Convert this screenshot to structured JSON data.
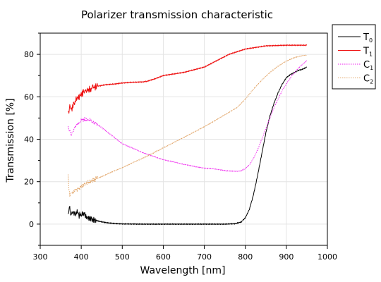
{
  "chart_data": {
    "type": "line",
    "title": "Polarizer transmission characteristic",
    "xlabel": "Wavelength [nm]",
    "ylabel": "Transmission [%]",
    "xlim": [
      300,
      1000
    ],
    "ylim": [
      -10,
      90
    ],
    "xticks": [
      "300",
      "400",
      "500",
      "600",
      "700",
      "800",
      "900",
      "1000"
    ],
    "yticks": [
      "0",
      "20",
      "40",
      "60",
      "80"
    ],
    "grid": true,
    "legend_position": "outside-top-right",
    "series": [
      {
        "name": "T",
        "subscript": "0",
        "color": "#000000",
        "dash": "solid",
        "x": [
          368,
          372,
          376,
          380,
          385,
          390,
          395,
          400,
          410,
          420,
          440,
          460,
          480,
          500,
          550,
          600,
          650,
          700,
          750,
          775,
          790,
          800,
          810,
          820,
          830,
          840,
          850,
          860,
          870,
          880,
          890,
          900,
          910,
          920,
          930,
          940,
          950
        ],
        "y": [
          5,
          7,
          4,
          6,
          5,
          6,
          4,
          5,
          4,
          3,
          1.5,
          0.7,
          0.3,
          0.1,
          0,
          0,
          0,
          0,
          0,
          0.2,
          1,
          3,
          7,
          14,
          23,
          33,
          43,
          51,
          57,
          62,
          66,
          69,
          70.5,
          71.5,
          72.5,
          73,
          74
        ]
      },
      {
        "name": "T",
        "subscript": "1",
        "color": "#ee1111",
        "dash": "solid",
        "x": [
          368,
          370,
          372,
          375,
          380,
          385,
          390,
          400,
          410,
          420,
          440,
          460,
          480,
          500,
          520,
          550,
          560,
          580,
          600,
          650,
          700,
          730,
          760,
          800,
          850,
          900,
          950
        ],
        "y": [
          54,
          52,
          55,
          53,
          56,
          58,
          59,
          61,
          63,
          63.5,
          65,
          65.7,
          66,
          66.5,
          66.8,
          67,
          67.3,
          68.5,
          70,
          71.5,
          74,
          77,
          80,
          82.5,
          84,
          84.3,
          84.3
        ]
      },
      {
        "name": "C",
        "subscript": "1",
        "color": "#ee22ee",
        "dash": "dotted",
        "x": [
          368,
          372,
          376,
          380,
          385,
          390,
          395,
          400,
          410,
          420,
          440,
          460,
          480,
          500,
          550,
          600,
          650,
          700,
          750,
          780,
          790,
          800,
          810,
          820,
          830,
          840,
          850,
          860,
          870,
          880,
          890,
          900,
          910,
          920,
          930,
          940,
          950
        ],
        "y": [
          46,
          44,
          42,
          44,
          46,
          47,
          48,
          49,
          49.5,
          49,
          47,
          44,
          41,
          38,
          33.5,
          30.5,
          28,
          26.5,
          25.2,
          25,
          25.2,
          26,
          28,
          31,
          35,
          40,
          45,
          50,
          55,
          59,
          63,
          66,
          69,
          71.5,
          73.5,
          75.5,
          77
        ]
      },
      {
        "name": "C",
        "subscript": "2",
        "color": "#e0a060",
        "dash": "dotted",
        "x": [
          368,
          370,
          372,
          375,
          380,
          390,
          400,
          420,
          450,
          500,
          550,
          600,
          650,
          700,
          750,
          780,
          800,
          820,
          840,
          860,
          880,
          900,
          920,
          940,
          950
        ],
        "y": [
          23,
          16,
          14,
          15,
          15,
          16.5,
          17.5,
          20,
          22.5,
          26.5,
          31,
          36,
          41,
          46,
          51.5,
          55,
          59,
          63.5,
          68,
          71.5,
          74.5,
          77,
          78.5,
          79.3,
          79.5
        ]
      }
    ]
  }
}
